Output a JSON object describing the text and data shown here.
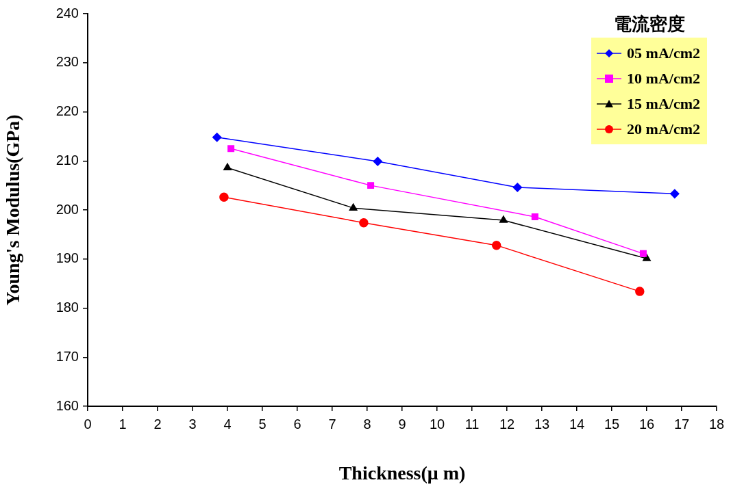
{
  "chart_data": {
    "type": "line",
    "xlabel": "Thickness(μ m)",
    "ylabel": "Young's Modulus(GPa)",
    "legend_title": "電流密度",
    "legend": "top right",
    "grid": false,
    "xlim": [
      0,
      18
    ],
    "xticks": [
      0,
      1,
      2,
      3,
      4,
      5,
      6,
      7,
      8,
      9,
      10,
      11,
      12,
      13,
      14,
      15,
      16,
      17,
      18
    ],
    "ylim": [
      160,
      240
    ],
    "yticks": [
      160,
      170,
      180,
      190,
      200,
      210,
      220,
      230,
      240
    ],
    "series": [
      {
        "name": "05 mA/cm2",
        "color": "#0000ff",
        "marker": "diamond",
        "x": [
          3.7,
          8.3,
          12.3,
          16.8
        ],
        "values": [
          214.8,
          209.9,
          204.6,
          203.3
        ]
      },
      {
        "name": "10 mA/cm2",
        "color": "#ff00ff",
        "marker": "square",
        "x": [
          4.1,
          8.1,
          12.8,
          15.9
        ],
        "values": [
          212.5,
          205.0,
          198.6,
          191.1
        ]
      },
      {
        "name": "15 mA/cm2",
        "color": "#000000",
        "marker": "triangle",
        "x": [
          4.0,
          7.6,
          11.9,
          16.0
        ],
        "values": [
          208.6,
          200.4,
          197.9,
          190.1
        ]
      },
      {
        "name": "20 mA/cm2",
        "color": "#ff0000",
        "marker": "circle",
        "x": [
          3.9,
          7.9,
          11.7,
          15.8
        ],
        "values": [
          202.6,
          197.4,
          192.8,
          183.4
        ]
      }
    ]
  }
}
